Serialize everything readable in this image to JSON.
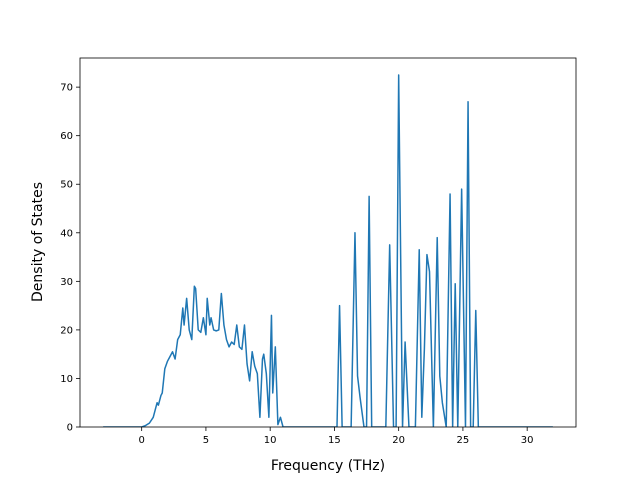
{
  "chart_data": {
    "type": "line",
    "title": "",
    "xlabel": "Frequency (THz)",
    "ylabel": "Density of States",
    "xlim": [
      -4.8,
      33.8
    ],
    "ylim": [
      0,
      76
    ],
    "xticks": [
      0,
      5,
      10,
      15,
      20,
      25,
      30
    ],
    "yticks": [
      0,
      10,
      20,
      30,
      40,
      50,
      60,
      70
    ],
    "grid": false,
    "legend": "none",
    "series": [
      {
        "color": "#1f77b4",
        "x": [
          -3.0,
          -1.0,
          0.0,
          0.3,
          0.6,
          0.9,
          1.0,
          1.2,
          1.3,
          1.5,
          1.6,
          1.8,
          2.0,
          2.2,
          2.4,
          2.6,
          2.8,
          3.0,
          3.2,
          3.3,
          3.5,
          3.7,
          3.9,
          4.1,
          4.2,
          4.4,
          4.6,
          4.8,
          5.0,
          5.1,
          5.3,
          5.4,
          5.6,
          5.8,
          6.0,
          6.2,
          6.4,
          6.6,
          6.8,
          7.0,
          7.2,
          7.4,
          7.6,
          7.8,
          8.0,
          8.2,
          8.4,
          8.6,
          8.8,
          9.0,
          9.2,
          9.4,
          9.5,
          9.7,
          9.9,
          10.1,
          10.2,
          10.4,
          10.6,
          10.8,
          11.0,
          11.2,
          11.4,
          11.6,
          11.8,
          15.0,
          15.2,
          15.4,
          15.6,
          15.9,
          16.3,
          16.6,
          16.8,
          17.0,
          17.3,
          17.5,
          17.7,
          17.9,
          18.1,
          18.5,
          19.0,
          19.3,
          19.6,
          19.8,
          20.0,
          20.3,
          20.5,
          20.8,
          21.0,
          21.3,
          21.6,
          21.8,
          22.0,
          22.2,
          22.4,
          22.7,
          23.0,
          23.2,
          23.4,
          23.7,
          24.0,
          24.2,
          24.4,
          24.6,
          24.9,
          25.2,
          25.4,
          25.6,
          25.8,
          26.0,
          26.2,
          26.4,
          26.6,
          27.0,
          32.0
        ],
        "y": [
          0.0,
          0.0,
          0.0,
          0.3,
          0.8,
          2.0,
          3.0,
          5.0,
          4.5,
          6.5,
          7.0,
          12.0,
          13.5,
          14.5,
          15.5,
          14.0,
          18.0,
          19.0,
          24.5,
          21.0,
          26.5,
          20.0,
          18.0,
          29.0,
          28.5,
          20.0,
          19.5,
          22.5,
          19.0,
          26.5,
          21.0,
          22.5,
          20.0,
          19.8,
          20.0,
          27.5,
          21.0,
          18.0,
          16.5,
          17.5,
          17.0,
          21.0,
          16.5,
          16.0,
          21.0,
          13.0,
          9.5,
          15.5,
          12.5,
          11.0,
          2.0,
          14.0,
          15.0,
          11.0,
          2.0,
          23.0,
          7.0,
          16.5,
          0.5,
          2.0,
          0.0,
          0.0,
          0.0,
          0.0,
          0.0,
          0.0,
          0.0,
          25.0,
          0.0,
          0.0,
          0.0,
          40.0,
          10.5,
          6.0,
          0.0,
          0.0,
          47.5,
          0.0,
          0.0,
          0.0,
          0.0,
          37.5,
          0.0,
          0.0,
          72.5,
          0.0,
          17.5,
          0.0,
          0.0,
          0.0,
          36.5,
          2.0,
          16.0,
          35.5,
          32.0,
          0.0,
          39.0,
          10.5,
          5.0,
          0.0,
          48.0,
          0.0,
          29.5,
          0.0,
          49.0,
          0.0,
          67.0,
          0.0,
          0.0,
          24.0,
          0.0,
          0.0,
          0.0,
          0.0,
          0.0
        ]
      }
    ]
  }
}
